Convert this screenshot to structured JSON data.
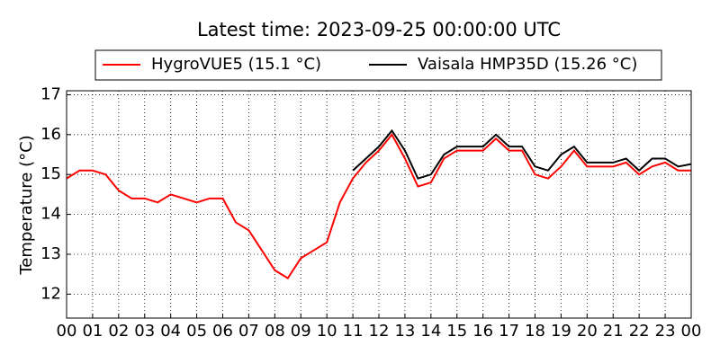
{
  "chart_data": {
    "type": "line",
    "title": "Latest time: 2023-09-25 00:00:00 UTC",
    "y_label": "Temperature (°C)",
    "x": [
      0,
      0.5,
      1,
      1.5,
      2,
      2.5,
      3,
      3.5,
      4,
      4.5,
      5,
      5.5,
      6,
      6.5,
      7,
      7.5,
      8,
      8.5,
      9,
      9.5,
      10,
      10.5,
      11,
      11.5,
      12,
      12.5,
      13,
      13.5,
      14,
      14.5,
      15,
      15.5,
      16,
      16.5,
      17,
      17.5,
      18,
      18.5,
      19,
      19.5,
      20,
      20.5,
      21,
      21.5,
      22,
      22.5,
      23,
      23.5,
      24
    ],
    "series": [
      {
        "name": "HygroVUE5 (15.1 °C)",
        "color": "#ff0000",
        "values": [
          14.9,
          15.1,
          15.1,
          15.0,
          14.6,
          14.4,
          14.4,
          14.3,
          14.5,
          14.4,
          14.3,
          14.4,
          14.4,
          13.8,
          13.6,
          13.1,
          12.6,
          12.4,
          12.9,
          13.1,
          13.3,
          14.3,
          14.9,
          15.3,
          15.6,
          16.0,
          15.4,
          14.7,
          14.8,
          15.4,
          15.6,
          15.6,
          15.6,
          15.9,
          15.6,
          15.6,
          15.0,
          14.9,
          15.2,
          15.6,
          15.2,
          15.2,
          15.2,
          15.3,
          15.0,
          15.2,
          15.3,
          15.1,
          15.1
        ]
      },
      {
        "name": "Vaisala HMP35D (15.26 °C)",
        "color": "#000000",
        "values": [
          null,
          null,
          null,
          null,
          null,
          null,
          null,
          null,
          null,
          null,
          null,
          null,
          null,
          null,
          null,
          null,
          null,
          null,
          null,
          null,
          null,
          null,
          15.1,
          15.4,
          15.7,
          16.1,
          15.6,
          14.9,
          15.0,
          15.5,
          15.7,
          15.7,
          15.7,
          16.0,
          15.7,
          15.7,
          15.2,
          15.1,
          15.5,
          15.7,
          15.3,
          15.3,
          15.3,
          15.4,
          15.1,
          15.4,
          15.4,
          15.2,
          15.26
        ]
      }
    ],
    "xlim": [
      0,
      24
    ],
    "xticks": [
      {
        "value": 0,
        "label": "00"
      },
      {
        "value": 1,
        "label": "01"
      },
      {
        "value": 2,
        "label": "02"
      },
      {
        "value": 3,
        "label": "03"
      },
      {
        "value": 4,
        "label": "04"
      },
      {
        "value": 5,
        "label": "05"
      },
      {
        "value": 6,
        "label": "06"
      },
      {
        "value": 7,
        "label": "07"
      },
      {
        "value": 8,
        "label": "08"
      },
      {
        "value": 9,
        "label": "09"
      },
      {
        "value": 10,
        "label": "10"
      },
      {
        "value": 11,
        "label": "11"
      },
      {
        "value": 12,
        "label": "12"
      },
      {
        "value": 13,
        "label": "13"
      },
      {
        "value": 14,
        "label": "14"
      },
      {
        "value": 15,
        "label": "15"
      },
      {
        "value": 16,
        "label": "16"
      },
      {
        "value": 17,
        "label": "17"
      },
      {
        "value": 18,
        "label": "18"
      },
      {
        "value": 19,
        "label": "19"
      },
      {
        "value": 20,
        "label": "20"
      },
      {
        "value": 21,
        "label": "21"
      },
      {
        "value": 22,
        "label": "22"
      },
      {
        "value": 23,
        "label": "23"
      },
      {
        "value": 24,
        "label": "00"
      }
    ],
    "ylim": [
      11.4,
      17.1
    ],
    "yticks": [
      12,
      13,
      14,
      15,
      16,
      17
    ],
    "grid": true,
    "legend": "top"
  }
}
